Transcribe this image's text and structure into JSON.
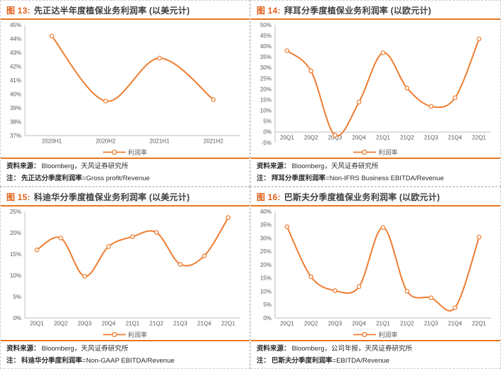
{
  "colors": {
    "accent": "#ED7D31",
    "rule_orange": "#E87722",
    "title_label_orange": "#E0611C",
    "title_text": "#3F3F3F",
    "axis_line": "#BFBFBF",
    "tick_text": "#595959",
    "panel_border": "#CDCDCD"
  },
  "legend_label": "利润率",
  "panels": [
    {
      "fig_label": "图 13:",
      "title": "先正达半年度植保业务利润率 (以美元计)",
      "legend": "利润率",
      "source_label": "资料来源：",
      "source_text": "Bloomberg，天风证券研究所",
      "note_label": "注：",
      "note_zh": "先正达分季度利润率",
      "note_formula": "=Gross profit/Revenue"
    },
    {
      "fig_label": "图 14:",
      "title": "拜耳分季度植保业务利润率 (以欧元计)",
      "legend": "利润率",
      "source_label": "资料来源：",
      "source_text": "Bloomberg，天风证券研究所",
      "note_label": "注：",
      "note_zh": "拜耳分季度利润率",
      "note_formula": "=Non-IFRS Business EBITDA/Revenue"
    },
    {
      "fig_label": "图 15:",
      "title": "科迪华分季度植保业务利润率 (以美元计)",
      "legend": "利润率",
      "source_label": "资料来源：",
      "source_text": "Bloomberg，天风证券研究所",
      "note_label": "注：",
      "note_zh": "科迪华分季度利润率",
      "note_formula": "=Non-GAAP EBITDA/Revenue"
    },
    {
      "fig_label": "图 16:",
      "title": "巴斯夫分季度植保业务利润率 (以欧元计)",
      "legend": "利润率",
      "source_label": "资料来源：",
      "source_text": "Bloomberg，公司年报，天风证券研究所",
      "note_label": "注：",
      "note_zh": "巴斯夫分季度利润率",
      "note_formula": "=EBITDA/Revenue"
    }
  ],
  "chart_data": [
    {
      "type": "line",
      "title": "先正达半年度植保业务利润率 (以美元计)",
      "categories": [
        "2020H1",
        "2020H2",
        "2021H1",
        "2021H2"
      ],
      "values": [
        44.2,
        39.5,
        42.6,
        39.6
      ],
      "series_name": "利润率",
      "ylim": [
        37,
        45
      ],
      "ytick_step": 1,
      "y_unit": "%",
      "axis_baseline": 37,
      "grid": false,
      "legend_position": "bottom",
      "line_color": "#ED7D31",
      "marker": "open-circle",
      "smooth": true
    },
    {
      "type": "line",
      "title": "拜耳分季度植保业务利润率 (以欧元计)",
      "categories": [
        "20Q1",
        "20Q2",
        "20Q3",
        "20Q4",
        "21Q1",
        "21Q2",
        "21Q3",
        "21Q4",
        "22Q1"
      ],
      "values": [
        38,
        28.5,
        -1.5,
        14,
        37,
        20.5,
        12,
        16,
        43.5
      ],
      "series_name": "利润率",
      "ylim": [
        -5,
        50
      ],
      "ytick_step": 5,
      "y_unit": "%",
      "axis_baseline": 0,
      "grid": false,
      "legend_position": "bottom",
      "line_color": "#ED7D31",
      "marker": "open-circle",
      "smooth": true
    },
    {
      "type": "line",
      "title": "科迪华分季度植保业务利润率 (以美元计)",
      "categories": [
        "20Q1",
        "20Q2",
        "20Q3",
        "20Q4",
        "21Q1",
        "21Q2",
        "21Q3",
        "21Q4",
        "22Q1"
      ],
      "values": [
        16,
        18.8,
        9.8,
        16.8,
        19.1,
        20.1,
        12.6,
        14.6,
        23.6
      ],
      "series_name": "利润率",
      "ylim": [
        0,
        25
      ],
      "ytick_step": 5,
      "y_unit": "%",
      "axis_baseline": 0,
      "grid": false,
      "legend_position": "bottom",
      "line_color": "#ED7D31",
      "marker": "open-circle",
      "smooth": true
    },
    {
      "type": "line",
      "title": "巴斯夫分季度植保业务利润率 (以欧元计)",
      "categories": [
        "20Q1",
        "20Q2",
        "20Q3",
        "20Q4",
        "21Q1",
        "21Q2",
        "21Q3",
        "21Q4",
        "22Q1"
      ],
      "values": [
        34.3,
        15.5,
        10.3,
        11.8,
        34.0,
        10.1,
        7.6,
        3.9,
        30.4
      ],
      "series_name": "利润率",
      "ylim": [
        0,
        40
      ],
      "ytick_step": 5,
      "y_unit": "%",
      "axis_baseline": 0,
      "grid": false,
      "legend_position": "bottom",
      "line_color": "#ED7D31",
      "marker": "open-circle",
      "smooth": true
    }
  ]
}
